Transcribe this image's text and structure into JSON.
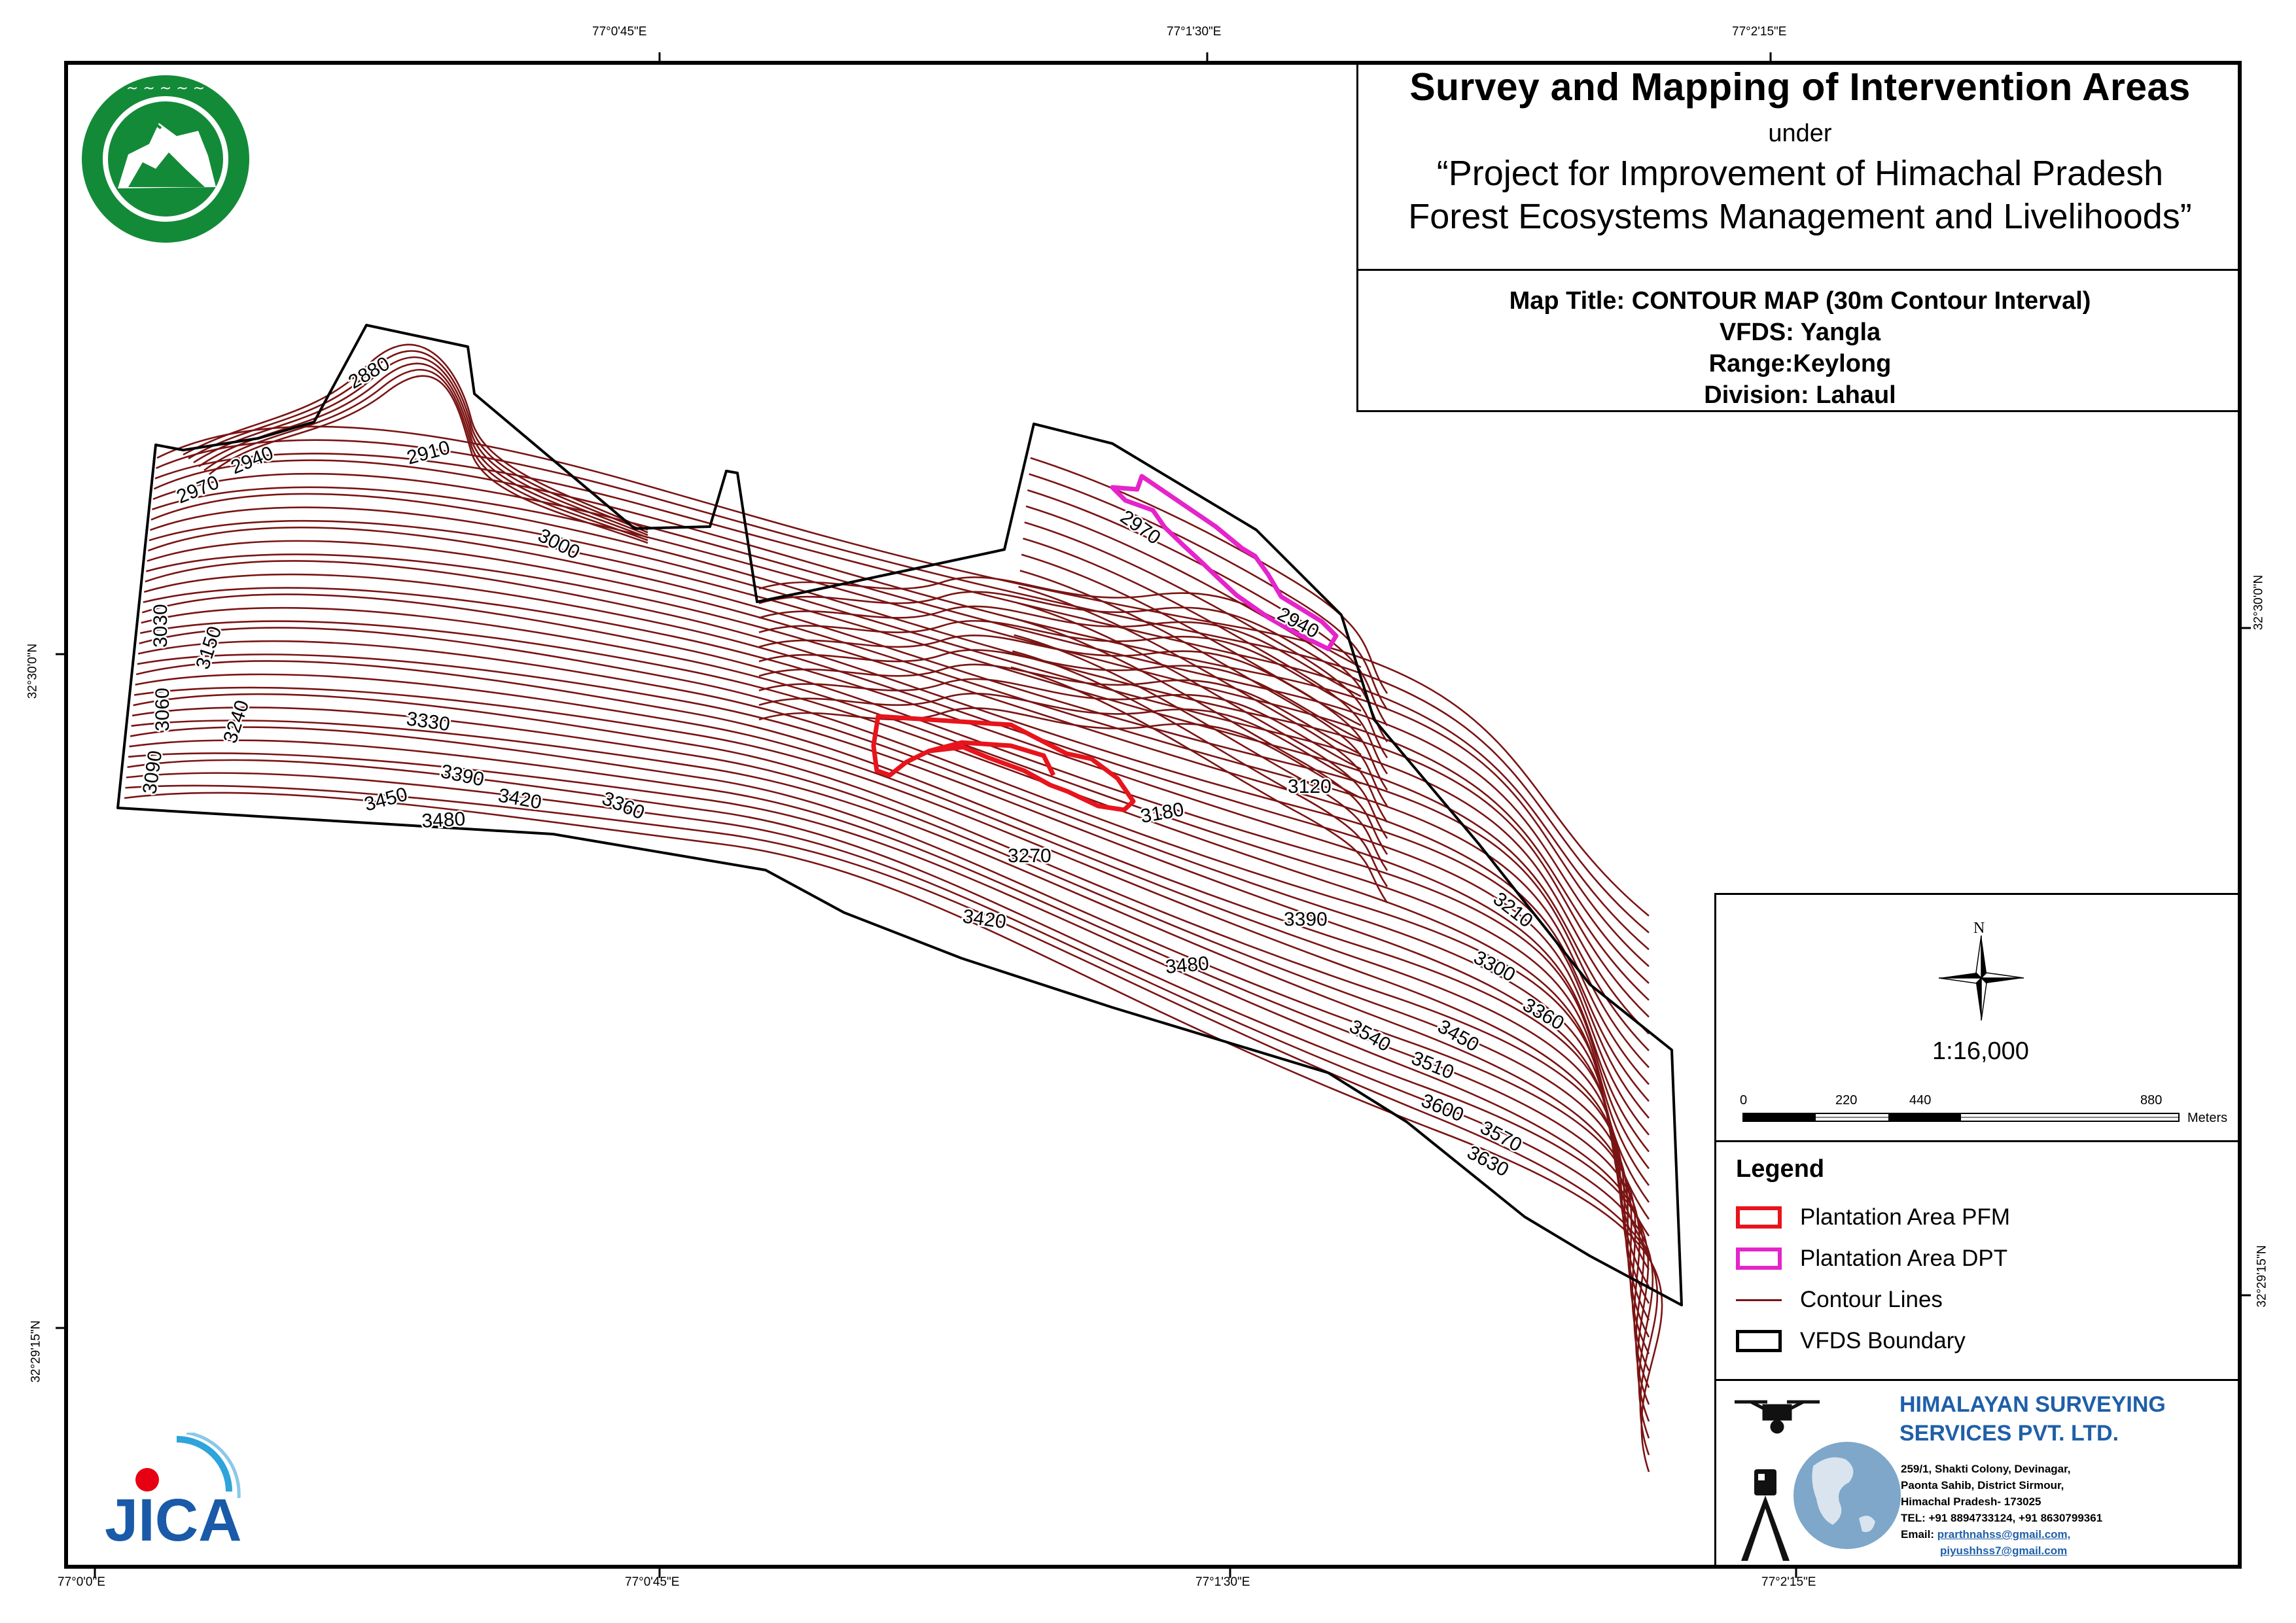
{
  "coordinates": {
    "top_lon": [
      "77°0'45\"E",
      "77°1'30\"E",
      "77°2'15\"E"
    ],
    "bottom_lon": [
      "77°0'0\"E",
      "77°0'45\"E",
      "77°1'30\"E",
      "77°2'15\"E"
    ],
    "left_lat": [
      "32°30'0\"N",
      "32°29'15\"N"
    ],
    "right_lat": [
      "32°30'0\"N",
      "32°29'15\"N"
    ]
  },
  "title": {
    "main": "Survey and Mapping of Intervention Areas",
    "under": "under",
    "project_line1": "“Project for Improvement of Himachal Pradesh",
    "project_line2": "Forest Ecosystems Management and Livelihoods”"
  },
  "map_info": {
    "map_title": "Map Title: CONTOUR MAP (30m Contour Interval)",
    "vfds": "VFDS: Yangla",
    "range": "Range:Keylong",
    "division": "Division: Lahaul"
  },
  "north_arrow": {
    "label": "N"
  },
  "scale": {
    "ratio": "1:16,000",
    "ticks": [
      "0",
      "220",
      "440",
      "880"
    ],
    "unit": "Meters"
  },
  "legend": {
    "heading": "Legend",
    "items": [
      {
        "label": "Plantation Area PFM",
        "color": "#e8141c"
      },
      {
        "label": "Plantation Area DPT",
        "color": "#e524c9"
      },
      {
        "label": "Contour Lines",
        "color": "#7a1414"
      },
      {
        "label": "VFDS Boundary",
        "color": "#000000"
      }
    ]
  },
  "company": {
    "name_line1": "HIMALAYAN SURVEYING",
    "name_line2": "SERVICES PVT. LTD.",
    "address1": "259/1, Shakti Colony, Devinagar,",
    "address2": "Paonta Sahib, District Sirmour,",
    "address3": "Himachal Pradesh- 173025",
    "tel": "TEL: +91 8894733124, +91 8630799361",
    "email_label": "Email:",
    "email1": "prarthnahss@gmail.com,",
    "email2": "piyushhss7@gmail.com",
    "color": "#1f5fa8"
  },
  "logos": {
    "forest_dept_icon": "himachal-forest-department-emblem",
    "jica_text": "JICA"
  },
  "contour_labels": [
    "2880",
    "2910",
    "2940",
    "2970",
    "3000",
    "3030",
    "3060",
    "3090",
    "3150",
    "3240",
    "3330",
    "3390",
    "3420",
    "3360",
    "3450",
    "3480",
    "2970",
    "2940",
    "3120",
    "3180",
    "3270",
    "3420",
    "3390",
    "3480",
    "3210",
    "3300",
    "3360",
    "3450",
    "3540",
    "3510",
    "3600",
    "3570",
    "3630"
  ]
}
